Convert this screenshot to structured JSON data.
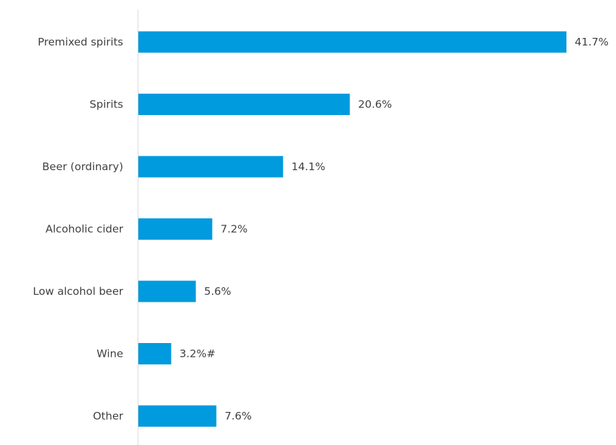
{
  "chart_data": {
    "type": "bar",
    "orientation": "horizontal",
    "categories": [
      "Premixed spirits",
      "Spirits",
      "Beer (ordinary)",
      "Alcoholic cider",
      "Low alcohol beer",
      "Wine",
      "Other"
    ],
    "values": [
      41.7,
      20.6,
      14.1,
      7.2,
      5.6,
      3.2,
      7.6
    ],
    "value_labels": [
      "41.7%",
      "20.6%",
      "14.1%",
      "7.2%",
      "5.6%",
      "3.2%#",
      "7.6%"
    ],
    "unit": "%",
    "title": "",
    "xlabel": "",
    "ylabel": "",
    "xlim": [
      0,
      41.7
    ],
    "grid": false,
    "legend": "none",
    "colors": {
      "bar": "#009ADE",
      "axis": "#d9d9d9",
      "text": "#404040"
    }
  }
}
